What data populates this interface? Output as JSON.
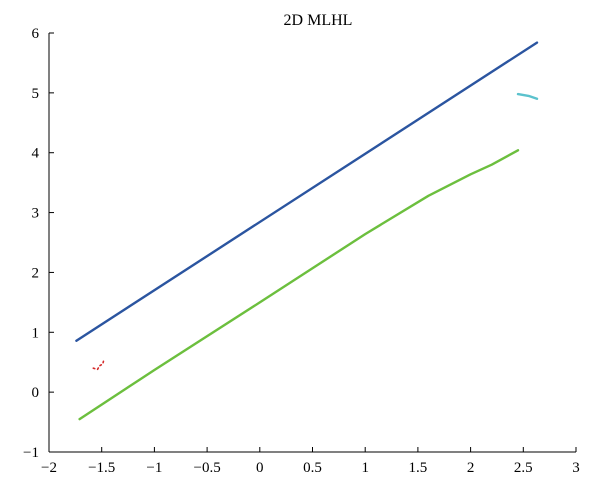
{
  "chart_data": {
    "type": "line",
    "title": "2D MLHL",
    "xlabel": "",
    "ylabel": "",
    "xlim": [
      -2,
      3
    ],
    "ylim": [
      -1,
      6
    ],
    "xticks": [
      -2,
      -1.5,
      -1,
      -0.5,
      0,
      0.5,
      1,
      1.5,
      2,
      2.5,
      3
    ],
    "yticks": [
      -1,
      0,
      1,
      2,
      3,
      4,
      5,
      6
    ],
    "xtick_labels": [
      "−2",
      "−1.5",
      "−1",
      "−0.5",
      "0",
      "0.5",
      "1",
      "1.5",
      "2",
      "2.5",
      "3"
    ],
    "ytick_labels": [
      "−1",
      "0",
      "1",
      "2",
      "3",
      "4",
      "5",
      "6"
    ],
    "grid": false,
    "legend": "none",
    "series": [
      {
        "color": "#2b55a0",
        "style": "solid",
        "x": [
          -1.74,
          2.63
        ],
        "y": [
          0.86,
          5.84
        ]
      },
      {
        "color": "#6cbf3e",
        "style": "solid",
        "x": [
          -1.71,
          -1.0,
          0.0,
          1.0,
          1.6,
          2.0,
          2.2,
          2.45
        ],
        "y": [
          -0.45,
          0.37,
          1.5,
          2.64,
          3.28,
          3.64,
          3.8,
          4.04
        ]
      },
      {
        "color": "#5bc2cd",
        "style": "solid",
        "x": [
          2.45,
          2.55,
          2.63
        ],
        "y": [
          4.98,
          4.95,
          4.9
        ]
      },
      {
        "color": "#d42a2a",
        "style": "dotted",
        "x": [
          -1.58,
          -1.54,
          -1.52,
          -1.49,
          -1.48
        ],
        "y": [
          0.4,
          0.38,
          0.44,
          0.47,
          0.54
        ]
      }
    ]
  }
}
